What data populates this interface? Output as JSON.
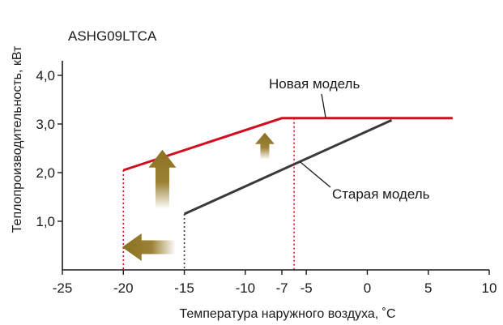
{
  "chart_data": {
    "type": "line",
    "title": "ASHG09LTCA",
    "xlabel": "Температура наружного воздуха, ˚C",
    "ylabel": "Теплопроизводительность, кВт",
    "xlim": [
      -25,
      10
    ],
    "ylim": [
      0,
      4.3
    ],
    "x_ticks": [
      -25,
      -20,
      -15,
      -10,
      -7,
      -5,
      0,
      5,
      10
    ],
    "x_tick_labels": [
      "-25",
      "-20",
      "-15",
      "-10",
      "-7",
      "-5",
      "0",
      "5",
      "10"
    ],
    "y_ticks": [
      1,
      2,
      3,
      4
    ],
    "y_tick_labels": [
      "1,0",
      "2,0",
      "3,0",
      "4,0"
    ],
    "grid": false,
    "series": [
      {
        "name": "Новая модель",
        "color": "#d0101e",
        "x": [
          -20,
          -7,
          7
        ],
        "y": [
          2.05,
          3.12,
          3.12
        ]
      },
      {
        "name": "Старая модель",
        "color": "#3a3a3a",
        "x": [
          -15,
          2
        ],
        "y": [
          1.15,
          3.08
        ]
      }
    ],
    "reference_lines": [
      {
        "x": -20,
        "y": 2.05,
        "color": "#d0101e"
      },
      {
        "x": -15,
        "y": 1.15,
        "color": "#3a3a3a"
      },
      {
        "x": -6,
        "y": 3.12,
        "color": "#d0101e"
      }
    ],
    "arrows": [
      {
        "direction": "left",
        "color": "#8a7020"
      },
      {
        "direction": "up",
        "color": "#8a7020"
      },
      {
        "direction": "up",
        "color": "#8a7020"
      }
    ]
  }
}
